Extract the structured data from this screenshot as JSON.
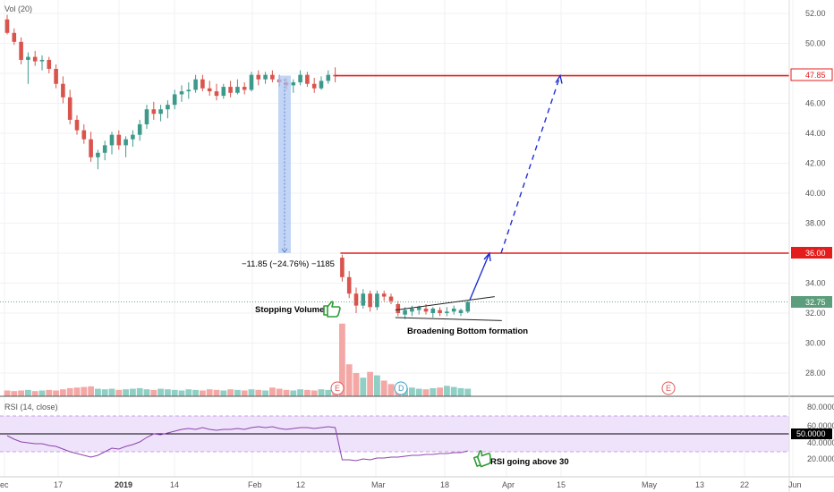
{
  "colors": {
    "up": "#3d9a8b",
    "down": "#d9544d",
    "vol_up": "#8fcfc4",
    "vol_down": "#f3a8a6",
    "red_line": "#e51c1c",
    "blue": "#1f2fd6",
    "rsi_line": "#8e44ad",
    "rsi_band": "#efe2fb",
    "price_tag": "#5c9e7c",
    "last_tag": "#000000"
  },
  "indicators": {
    "volume_label": "Vol (20)",
    "rsi_label": "RSI (14, close)"
  },
  "price_axis": {
    "ticks": [
      "52.00",
      "50.00",
      "48.00",
      "46.00",
      "44.00",
      "42.00",
      "40.00",
      "38.00",
      "36.00",
      "34.00",
      "32.00",
      "30.00",
      "28.00"
    ]
  },
  "rsi_axis": {
    "ticks": [
      "80.0000",
      "60.0000",
      "40.0000",
      "20.0000"
    ],
    "midline_tag": "50.0000"
  },
  "time_axis": {
    "labels": [
      "ec",
      "17",
      "2019",
      "14",
      "Feb",
      "12",
      "Mar",
      "18",
      "Apr",
      "15",
      "May",
      "13",
      "22",
      "Jun"
    ]
  },
  "price_tags": {
    "target": "47.85",
    "resistance": "36.00",
    "last": "32.75"
  },
  "annotations": {
    "measure": "−11.85 (−24.76%) −1185",
    "stopping_volume": "Stopping Volume",
    "broadening_bottom": "Broadening Bottom formation",
    "rsi_note": "RSI going above 30"
  },
  "event_markers": [
    {
      "label": "E",
      "color": "#e05a5a"
    },
    {
      "label": "D",
      "color": "#3aa0c8"
    },
    {
      "label": "E",
      "color": "#e05a5a"
    }
  ],
  "chart_data": {
    "type": "candlestick",
    "ylim": [
      25.0,
      53.0
    ],
    "hlines": [
      47.85,
      36.0
    ],
    "last_price": 32.75,
    "candles": [
      {
        "o": 51.6,
        "h": 51.9,
        "l": 50.6,
        "c": 50.7
      },
      {
        "o": 50.7,
        "h": 51.0,
        "l": 49.9,
        "c": 50.1
      },
      {
        "o": 50.1,
        "h": 50.4,
        "l": 48.6,
        "c": 48.9
      },
      {
        "o": 48.9,
        "h": 49.4,
        "l": 47.3,
        "c": 49.1
      },
      {
        "o": 49.1,
        "h": 49.5,
        "l": 48.5,
        "c": 48.8
      },
      {
        "o": 48.8,
        "h": 49.2,
        "l": 48.2,
        "c": 48.9
      },
      {
        "o": 48.9,
        "h": 49.1,
        "l": 48.0,
        "c": 48.3
      },
      {
        "o": 48.3,
        "h": 48.6,
        "l": 47.0,
        "c": 47.3
      },
      {
        "o": 47.3,
        "h": 47.8,
        "l": 46.0,
        "c": 46.4
      },
      {
        "o": 46.4,
        "h": 46.9,
        "l": 44.6,
        "c": 44.9
      },
      {
        "o": 44.9,
        "h": 45.2,
        "l": 43.9,
        "c": 44.2
      },
      {
        "o": 44.2,
        "h": 44.6,
        "l": 43.3,
        "c": 43.6
      },
      {
        "o": 43.6,
        "h": 44.1,
        "l": 42.1,
        "c": 42.4
      },
      {
        "o": 42.4,
        "h": 42.9,
        "l": 41.6,
        "c": 42.7
      },
      {
        "o": 42.7,
        "h": 43.5,
        "l": 42.2,
        "c": 43.2
      },
      {
        "o": 43.2,
        "h": 44.1,
        "l": 42.6,
        "c": 43.9
      },
      {
        "o": 43.9,
        "h": 44.2,
        "l": 42.9,
        "c": 43.2
      },
      {
        "o": 43.2,
        "h": 43.8,
        "l": 42.4,
        "c": 43.6
      },
      {
        "o": 43.6,
        "h": 44.2,
        "l": 43.1,
        "c": 43.9
      },
      {
        "o": 43.9,
        "h": 44.9,
        "l": 43.5,
        "c": 44.6
      },
      {
        "o": 44.6,
        "h": 45.9,
        "l": 44.3,
        "c": 45.6
      },
      {
        "o": 45.6,
        "h": 46.1,
        "l": 44.9,
        "c": 45.3
      },
      {
        "o": 45.3,
        "h": 45.9,
        "l": 44.8,
        "c": 45.6
      },
      {
        "o": 45.6,
        "h": 46.2,
        "l": 45.0,
        "c": 45.9
      },
      {
        "o": 45.9,
        "h": 46.9,
        "l": 45.6,
        "c": 46.6
      },
      {
        "o": 46.6,
        "h": 47.2,
        "l": 46.1,
        "c": 46.8
      },
      {
        "o": 46.8,
        "h": 47.4,
        "l": 46.3,
        "c": 46.9
      },
      {
        "o": 46.9,
        "h": 47.9,
        "l": 46.7,
        "c": 47.6
      },
      {
        "o": 47.6,
        "h": 47.9,
        "l": 46.8,
        "c": 47.0
      },
      {
        "o": 47.0,
        "h": 47.5,
        "l": 46.5,
        "c": 46.8
      },
      {
        "o": 46.8,
        "h": 47.3,
        "l": 46.2,
        "c": 46.5
      },
      {
        "o": 46.5,
        "h": 47.3,
        "l": 46.3,
        "c": 47.1
      },
      {
        "o": 47.1,
        "h": 47.5,
        "l": 46.4,
        "c": 46.7
      },
      {
        "o": 46.7,
        "h": 47.6,
        "l": 46.6,
        "c": 47.1
      },
      {
        "o": 47.1,
        "h": 47.4,
        "l": 46.6,
        "c": 46.9
      },
      {
        "o": 46.9,
        "h": 48.1,
        "l": 46.8,
        "c": 47.9
      },
      {
        "o": 47.9,
        "h": 48.2,
        "l": 47.2,
        "c": 47.6
      },
      {
        "o": 47.6,
        "h": 48.1,
        "l": 47.3,
        "c": 47.9
      },
      {
        "o": 47.9,
        "h": 48.2,
        "l": 47.4,
        "c": 47.6
      },
      {
        "o": 47.6,
        "h": 47.9,
        "l": 47.1,
        "c": 47.4
      },
      {
        "o": 47.4,
        "h": 47.7,
        "l": 46.9,
        "c": 47.2
      },
      {
        "o": 47.2,
        "h": 47.6,
        "l": 46.7,
        "c": 47.4
      },
      {
        "o": 47.4,
        "h": 48.2,
        "l": 47.2,
        "c": 47.9
      },
      {
        "o": 47.9,
        "h": 48.1,
        "l": 47.1,
        "c": 47.3
      },
      {
        "o": 47.3,
        "h": 47.7,
        "l": 46.7,
        "c": 47.0
      },
      {
        "o": 47.0,
        "h": 47.8,
        "l": 46.9,
        "c": 47.5
      },
      {
        "o": 47.5,
        "h": 48.2,
        "l": 47.3,
        "c": 47.9
      },
      {
        "o": 47.9,
        "h": 48.4,
        "l": 47.4,
        "c": 47.8
      },
      {
        "o": 35.7,
        "h": 35.9,
        "l": 34.1,
        "c": 34.4
      },
      {
        "o": 34.4,
        "h": 34.8,
        "l": 33.0,
        "c": 33.3
      },
      {
        "o": 33.3,
        "h": 33.7,
        "l": 32.0,
        "c": 32.5
      },
      {
        "o": 32.5,
        "h": 33.6,
        "l": 32.3,
        "c": 33.3
      },
      {
        "o": 33.3,
        "h": 33.5,
        "l": 32.1,
        "c": 32.4
      },
      {
        "o": 32.4,
        "h": 33.5,
        "l": 32.2,
        "c": 33.3
      },
      {
        "o": 33.3,
        "h": 33.5,
        "l": 32.8,
        "c": 33.1
      },
      {
        "o": 33.1,
        "h": 33.3,
        "l": 32.6,
        "c": 32.8
      },
      {
        "o": 32.6,
        "h": 32.8,
        "l": 31.8,
        "c": 32.0
      },
      {
        "o": 31.9,
        "h": 32.4,
        "l": 31.6,
        "c": 32.2
      },
      {
        "o": 32.1,
        "h": 32.5,
        "l": 31.8,
        "c": 32.3
      },
      {
        "o": 32.2,
        "h": 32.5,
        "l": 31.9,
        "c": 32.4
      },
      {
        "o": 32.3,
        "h": 32.6,
        "l": 31.9,
        "c": 32.1
      },
      {
        "o": 32.0,
        "h": 32.4,
        "l": 31.7,
        "c": 32.3
      },
      {
        "o": 32.2,
        "h": 32.4,
        "l": 31.8,
        "c": 32.0
      },
      {
        "o": 32.0,
        "h": 32.4,
        "l": 31.8,
        "c": 32.1
      },
      {
        "o": 32.1,
        "h": 32.5,
        "l": 31.9,
        "c": 32.3
      },
      {
        "o": 32.0,
        "h": 32.3,
        "l": 31.8,
        "c": 32.2
      },
      {
        "o": 32.1,
        "h": 32.8,
        "l": 32.0,
        "c": 32.75
      }
    ],
    "volume": [
      1.0,
      0.9,
      1.0,
      1.1,
      0.9,
      1.0,
      1.1,
      1.0,
      1.2,
      1.4,
      1.5,
      1.6,
      1.7,
      1.3,
      1.2,
      1.3,
      1.1,
      1.2,
      1.3,
      1.4,
      1.2,
      1.1,
      1.3,
      1.2,
      1.1,
      1.0,
      1.2,
      1.1,
      1.0,
      1.2,
      1.1,
      1.0,
      1.2,
      1.1,
      1.0,
      1.2,
      1.1,
      1.0,
      1.5,
      1.3,
      1.1,
      1.0,
      1.2,
      1.1,
      1.0,
      1.2,
      1.1,
      1.3,
      12.5,
      5.5,
      4.0,
      3.2,
      4.2,
      3.6,
      2.7,
      2.1,
      1.5,
      1.4,
      1.5,
      1.3,
      1.2,
      1.4,
      1.5,
      1.8,
      1.6,
      1.4,
      1.3
    ],
    "rsi": [
      48,
      44,
      41,
      40,
      39,
      39,
      37,
      36,
      33,
      30,
      28,
      26,
      24,
      26,
      30,
      34,
      33,
      36,
      38,
      41,
      46,
      50,
      49,
      51,
      53,
      55,
      56,
      55,
      57,
      55,
      54,
      55,
      55,
      56,
      55,
      57,
      58,
      57,
      58,
      56,
      55,
      56,
      57,
      57,
      56,
      57,
      58,
      57,
      21,
      21,
      20,
      22,
      21,
      23,
      23,
      24,
      24,
      25,
      26,
      26,
      27,
      27,
      28,
      28,
      29,
      29,
      31
    ],
    "measure": {
      "from": 47.85,
      "to": 36.0,
      "change": -11.85,
      "percent": -24.76,
      "ticks": -1185
    },
    "target_projection": {
      "from": 36.0,
      "to": 47.85
    }
  }
}
